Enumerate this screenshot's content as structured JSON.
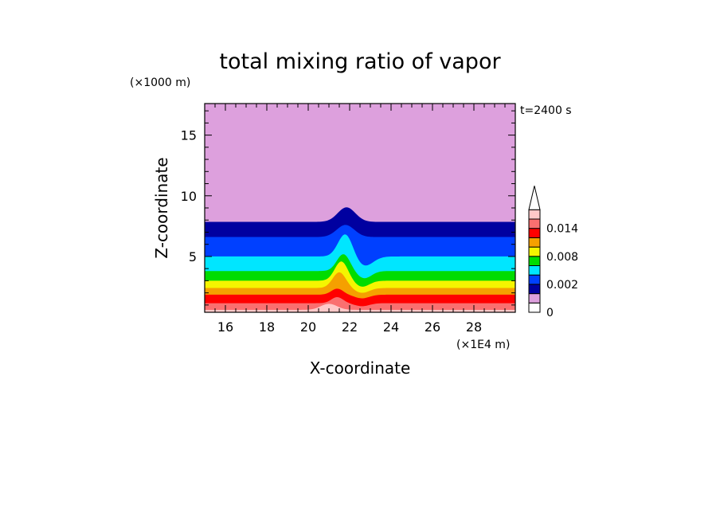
{
  "chart_data": {
    "type": "contour",
    "title": "total mixing ratio of vapor",
    "xlabel": "X-coordinate",
    "ylabel": "Z-coordinate",
    "x_unit": "(×1E4 m)",
    "y_unit": "(×1000 m)",
    "time_label": "t=2400 s",
    "xlim": [
      15,
      30
    ],
    "ylim": [
      0.4,
      17.6
    ],
    "x_ticks": [
      16,
      18,
      20,
      22,
      24,
      26,
      28
    ],
    "y_ticks": [
      5,
      10,
      15
    ],
    "colorbar": {
      "levels": [
        0,
        0.0005,
        0.001,
        0.002,
        0.004,
        0.006,
        0.008,
        0.01,
        0.012,
        0.014,
        0.016
      ],
      "colors": [
        "#ffffff",
        "#dda0dd",
        "#0000a0",
        "#0040ff",
        "#00e6ff",
        "#00dc00",
        "#f5f500",
        "#f5a000",
        "#ff0000",
        "#fa7070",
        "#ffc8c8"
      ],
      "tick_labels": [
        "0",
        "0.002",
        "0.008",
        "0.014"
      ],
      "tick_values": [
        0,
        0.002,
        0.008,
        0.014
      ],
      "extend": "max"
    },
    "contour_bands": [
      {
        "from": 0.016,
        "to": null,
        "color": "#ffc8c8",
        "boundary": {
          "base": 0.6,
          "bump_height": 0.5,
          "bump_center": 21.0,
          "bump_width": 0.55
        }
      },
      {
        "from": 0.014,
        "to": 0.016,
        "color": "#fa7070",
        "boundary": {
          "base": 1.15,
          "bump_height": 0.5,
          "bump_center": 21.4,
          "bump_width": 0.4,
          "dip_height": -0.25,
          "dip_center": 22.6,
          "dip_width": 0.5
        }
      },
      {
        "from": 0.012,
        "to": 0.014,
        "color": "#ff0000",
        "boundary": {
          "base": 1.85,
          "bump_height": 0.5,
          "bump_center": 21.4,
          "bump_width": 0.4,
          "dip_height": -0.3,
          "dip_center": 22.6,
          "dip_width": 0.5
        }
      },
      {
        "from": 0.01,
        "to": 0.012,
        "color": "#f5a000",
        "boundary": {
          "base": 2.4,
          "bump_height": 1.3,
          "bump_center": 21.5,
          "bump_width": 0.45,
          "dip_height": -0.4,
          "dip_center": 22.6,
          "dip_width": 0.5
        }
      },
      {
        "from": 0.008,
        "to": 0.01,
        "color": "#f5f500",
        "boundary": {
          "base": 3.0,
          "bump_height": 1.6,
          "bump_center": 21.6,
          "bump_width": 0.45,
          "dip_height": -0.5,
          "dip_center": 22.6,
          "dip_width": 0.5
        }
      },
      {
        "from": 0.006,
        "to": 0.008,
        "color": "#00dc00",
        "boundary": {
          "base": 3.8,
          "bump_height": 1.4,
          "bump_center": 21.7,
          "bump_width": 0.45,
          "dip_height": -0.6,
          "dip_center": 22.7,
          "dip_width": 0.5
        }
      },
      {
        "from": 0.004,
        "to": 0.006,
        "color": "#00e6ff",
        "boundary": {
          "base": 5.0,
          "bump_height": 1.9,
          "bump_center": 21.8,
          "bump_width": 0.5,
          "dip_height": -0.8,
          "dip_center": 22.7,
          "dip_width": 0.6
        }
      },
      {
        "from": 0.002,
        "to": 0.004,
        "color": "#0040ff",
        "boundary": {
          "base": 6.6,
          "bump_height": 1.0,
          "bump_center": 21.8,
          "bump_width": 0.6
        }
      },
      {
        "from": 0.001,
        "to": 0.002,
        "color": "#0000a0",
        "boundary": {
          "base": 7.85,
          "bump_height": 1.2,
          "bump_center": 21.85,
          "bump_width": 0.6
        }
      },
      {
        "from": 0.0005,
        "to": 0.001,
        "color": "#dda0dd",
        "boundary": {
          "base": 17.6,
          "bump_height": 0,
          "bump_center": 22,
          "bump_width": 1
        }
      }
    ]
  }
}
